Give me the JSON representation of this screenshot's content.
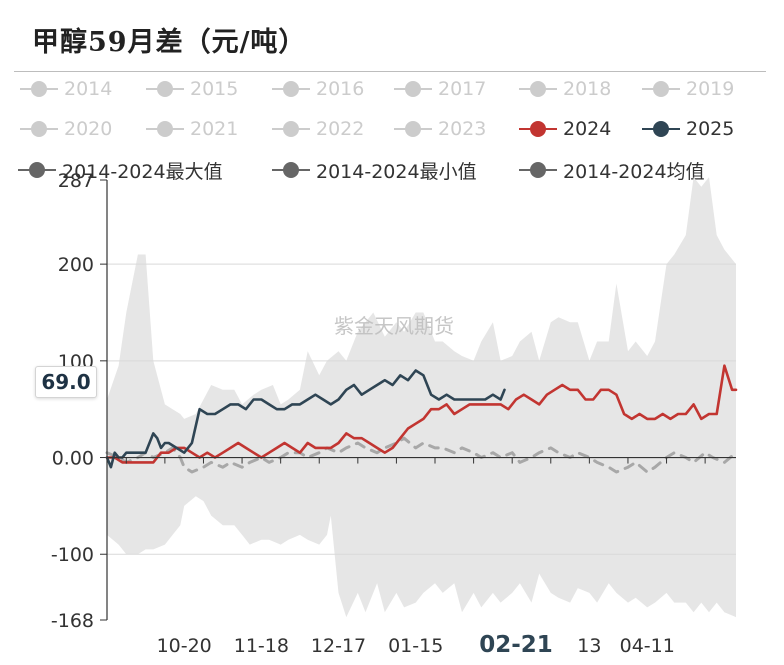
{
  "title": "甲醇59月差（元/吨）",
  "colors": {
    "muted": "#cccccc",
    "red": "#c23531",
    "dark": "#2f4554",
    "band_gray": "#e6e6e6",
    "axis": "#333333"
  },
  "legend": [
    {
      "label": "2014",
      "color": "#cccccc",
      "muted": true
    },
    {
      "label": "2015",
      "color": "#cccccc",
      "muted": true
    },
    {
      "label": "2016",
      "color": "#cccccc",
      "muted": true
    },
    {
      "label": "2017",
      "color": "#cccccc",
      "muted": true
    },
    {
      "label": "2018",
      "color": "#cccccc",
      "muted": true
    },
    {
      "label": "2019",
      "color": "#cccccc",
      "muted": true
    },
    {
      "label": "2020",
      "color": "#cccccc",
      "muted": true
    },
    {
      "label": "2021",
      "color": "#cccccc",
      "muted": true
    },
    {
      "label": "2022",
      "color": "#cccccc",
      "muted": true
    },
    {
      "label": "2023",
      "color": "#cccccc",
      "muted": true
    },
    {
      "label": "2024",
      "color": "#c23531",
      "muted": false
    },
    {
      "label": "2025",
      "color": "#2f4554",
      "muted": false
    },
    {
      "label": "2014-2024最大值",
      "color": "#666666",
      "muted": false
    },
    {
      "label": "2014-2024最小值",
      "color": "#666666",
      "muted": false
    },
    {
      "label": "2014-2024均值",
      "color": "#666666",
      "muted": false
    }
  ],
  "axis_pointer_label": "69.0",
  "watermark": "紫金天风期货",
  "chart_data": {
    "type": "line",
    "x_tick_labels": [
      "10-20",
      "11-18",
      "12-17",
      "01-15",
      "02-21",
      "13",
      "04-11"
    ],
    "x_tick_positions": [
      20,
      40,
      60,
      80,
      106,
      125,
      140
    ],
    "highlighted_x_label": "02-21",
    "y_tick_labels": [
      "287",
      "200",
      "100",
      "0.00",
      "-100",
      "-168"
    ],
    "y_tick_values": [
      287,
      200,
      100,
      0,
      -100,
      -168
    ],
    "ylim": [
      -168,
      287
    ],
    "xlim": [
      0,
      163
    ],
    "series": [
      {
        "name": "2014-2024最大值",
        "x": [
          0,
          3,
          5,
          8,
          10,
          12,
          15,
          17,
          19,
          20,
          23,
          25,
          27,
          30,
          33,
          35,
          38,
          40,
          43,
          45,
          47,
          50,
          52,
          55,
          57,
          60,
          62,
          65,
          67,
          69,
          72,
          75,
          77,
          80,
          82,
          85,
          87,
          90,
          92,
          95,
          97,
          100,
          102,
          105,
          107,
          110,
          112,
          115,
          117,
          120,
          122,
          125,
          127,
          130,
          132,
          135,
          137,
          140,
          142,
          145,
          147,
          150,
          152,
          154,
          156,
          158,
          160,
          163
        ],
        "values": [
          60,
          95,
          150,
          210,
          210,
          100,
          55,
          50,
          45,
          40,
          45,
          60,
          75,
          70,
          70,
          55,
          65,
          70,
          75,
          55,
          60,
          70,
          110,
          85,
          100,
          110,
          100,
          130,
          140,
          150,
          125,
          140,
          130,
          150,
          150,
          120,
          120,
          110,
          105,
          100,
          120,
          140,
          100,
          105,
          120,
          130,
          100,
          140,
          145,
          140,
          140,
          100,
          120,
          120,
          180,
          110,
          120,
          105,
          120,
          200,
          210,
          230,
          290,
          280,
          290,
          230,
          215,
          200
        ]
      },
      {
        "name": "2014-2024最小值",
        "x": [
          0,
          3,
          5,
          8,
          10,
          12,
          15,
          17,
          19,
          20,
          23,
          25,
          27,
          30,
          33,
          35,
          37,
          40,
          42,
          45,
          47,
          50,
          52,
          55,
          57,
          58,
          60,
          62,
          65,
          67,
          70,
          72,
          75,
          77,
          80,
          82,
          85,
          87,
          90,
          92,
          95,
          97,
          100,
          102,
          105,
          107,
          110,
          112,
          115,
          117,
          120,
          122,
          125,
          127,
          130,
          132,
          135,
          137,
          140,
          142,
          145,
          147,
          150,
          152,
          154,
          156,
          158,
          160,
          163
        ],
        "values": [
          -80,
          -90,
          -100,
          -100,
          -95,
          -95,
          -90,
          -80,
          -70,
          -50,
          -40,
          -45,
          -60,
          -70,
          -70,
          -80,
          -90,
          -85,
          -85,
          -90,
          -85,
          -80,
          -85,
          -90,
          -80,
          -60,
          -140,
          -165,
          -140,
          -160,
          -130,
          -160,
          -140,
          -155,
          -150,
          -140,
          -130,
          -140,
          -130,
          -160,
          -140,
          -155,
          -140,
          -150,
          -140,
          -130,
          -150,
          -120,
          -140,
          -145,
          -150,
          -135,
          -140,
          -150,
          -130,
          -140,
          -150,
          -145,
          -155,
          -150,
          -140,
          -150,
          -150,
          -160,
          -150,
          -160,
          -150,
          -160,
          -165
        ]
      },
      {
        "name": "2024",
        "x": [
          0,
          2,
          4,
          6,
          8,
          10,
          12,
          14,
          16,
          18,
          20,
          22,
          24,
          26,
          28,
          30,
          32,
          34,
          36,
          38,
          40,
          42,
          44,
          46,
          48,
          50,
          52,
          54,
          56,
          58,
          60,
          62,
          64,
          66,
          68,
          70,
          72,
          74,
          76,
          78,
          80,
          82,
          84,
          86,
          88,
          90,
          92,
          94,
          96,
          98,
          100,
          102,
          104,
          106,
          108,
          110,
          112,
          114,
          116,
          118,
          120,
          122,
          124,
          126,
          128,
          130,
          132,
          134,
          136,
          138,
          140,
          142,
          144,
          146,
          148,
          150,
          152,
          154,
          156,
          158,
          160,
          162,
          163
        ],
        "values": [
          0,
          0,
          -5,
          -5,
          -5,
          -5,
          -5,
          5,
          5,
          10,
          10,
          5,
          0,
          5,
          0,
          5,
          10,
          15,
          10,
          5,
          0,
          5,
          10,
          15,
          10,
          5,
          15,
          10,
          10,
          10,
          15,
          25,
          20,
          20,
          15,
          10,
          5,
          10,
          20,
          30,
          35,
          40,
          50,
          50,
          55,
          45,
          50,
          55,
          55,
          55,
          55,
          55,
          50,
          60,
          65,
          60,
          55,
          65,
          70,
          75,
          70,
          70,
          60,
          60,
          70,
          70,
          65,
          45,
          40,
          45,
          40,
          40,
          45,
          40,
          45,
          45,
          55,
          40,
          45,
          45,
          95,
          70,
          70
        ]
      },
      {
        "name": "2025",
        "x": [
          0,
          1,
          2,
          3,
          4,
          5,
          6,
          8,
          10,
          12,
          13,
          14,
          15,
          16,
          18,
          20,
          21,
          22,
          24,
          26,
          28,
          30,
          32,
          34,
          36,
          38,
          40,
          42,
          44,
          46,
          48,
          50,
          52,
          54,
          56,
          58,
          60,
          62,
          64,
          66,
          68,
          70,
          72,
          74,
          76,
          78,
          80,
          82,
          84,
          86,
          88,
          90,
          92,
          94,
          96,
          98,
          100,
          102,
          103
        ],
        "values": [
          0,
          -10,
          5,
          0,
          0,
          5,
          5,
          5,
          5,
          25,
          20,
          10,
          15,
          15,
          10,
          5,
          10,
          15,
          50,
          45,
          45,
          50,
          55,
          55,
          50,
          60,
          60,
          55,
          50,
          50,
          55,
          55,
          60,
          65,
          60,
          55,
          60,
          70,
          75,
          65,
          70,
          75,
          80,
          75,
          85,
          80,
          90,
          85,
          65,
          60,
          65,
          60,
          60,
          60,
          60,
          60,
          65,
          60,
          70
        ]
      },
      {
        "name": "2014-2024均值",
        "x": [
          0,
          3,
          5,
          8,
          10,
          12,
          15,
          17,
          19,
          20,
          22,
          25,
          27,
          30,
          32,
          35,
          37,
          40,
          42,
          45,
          47,
          50,
          52,
          55,
          57,
          60,
          62,
          65,
          67,
          70,
          72,
          75,
          77,
          80,
          82,
          85,
          87,
          90,
          92,
          95,
          97,
          100,
          102,
          105,
          107,
          110,
          112,
          115,
          117,
          120,
          122,
          125,
          127,
          130,
          132,
          135,
          137,
          140,
          142,
          145,
          147,
          150,
          152,
          155,
          157,
          160,
          163
        ],
        "values": [
          5,
          0,
          -5,
          0,
          5,
          0,
          5,
          10,
          0,
          -10,
          -15,
          -10,
          -5,
          -10,
          -5,
          -10,
          -5,
          0,
          -5,
          0,
          5,
          5,
          0,
          5,
          10,
          5,
          10,
          15,
          10,
          5,
          10,
          15,
          20,
          10,
          15,
          10,
          10,
          5,
          10,
          5,
          0,
          5,
          0,
          5,
          -5,
          0,
          5,
          10,
          5,
          0,
          5,
          0,
          -5,
          -10,
          -15,
          -10,
          -5,
          -15,
          -10,
          0,
          5,
          0,
          -5,
          5,
          0,
          -5,
          5
        ]
      }
    ]
  }
}
